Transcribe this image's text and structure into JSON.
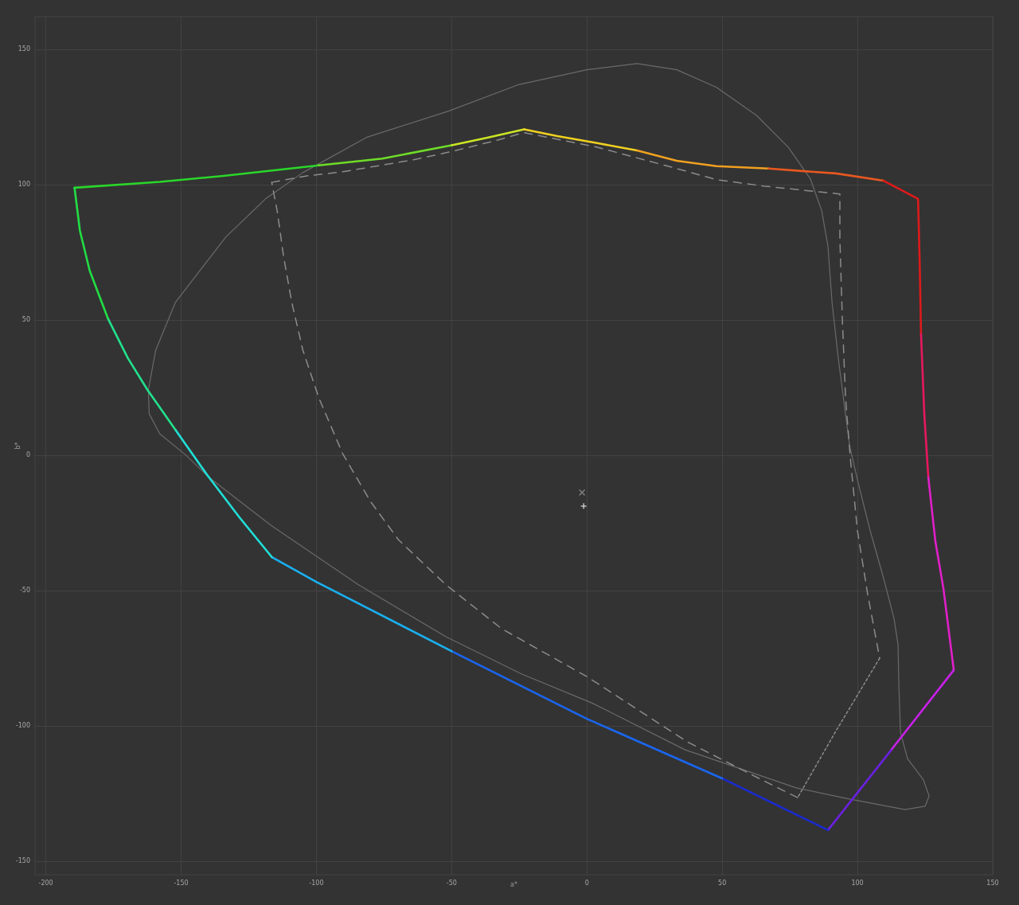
{
  "chart_data": {
    "type": "line",
    "xlabel": "a*",
    "ylabel": "b*",
    "xlim": [
      -204,
      150
    ],
    "ylim": [
      -155,
      162
    ],
    "xticks": [
      -200,
      -150,
      -100,
      -50,
      0,
      50,
      100,
      150
    ],
    "yticks": [
      -150,
      -100,
      -50,
      0,
      50,
      100,
      150
    ],
    "grid": true,
    "series": [
      {
        "color": "#6a6a6a",
        "x": [
          -162.1,
          -159.4,
          -152.1,
          -133.5,
          -118.8,
          -105,
          -81.5,
          -51.2,
          -25.6,
          0,
          18.5,
          33.2,
          47.9,
          62.6,
          74.4,
          82.6,
          86.8,
          89.1,
          90.6,
          92.9,
          97.1,
          100,
          104.7,
          109.7,
          113.5,
          115,
          115.3,
          115.9,
          118.5,
          124.4,
          126.5,
          125,
          117.6,
          95.9,
          77.4,
          36.2,
          2,
          -24,
          -52.1,
          -84.4,
          -116.8,
          -139.7,
          -148.2,
          -157.9,
          -161.8,
          -162.1,
          -159.4
        ],
        "values": [
          24.1,
          38.8,
          56.5,
          80.6,
          94.7,
          104.4,
          117.4,
          127.1,
          136.8,
          142.4,
          144.7,
          142.4,
          135.9,
          125.6,
          113.8,
          102.1,
          90.3,
          77.1,
          56.5,
          35.9,
          3.5,
          -9.1,
          -27.9,
          -45.6,
          -60.3,
          -70,
          -84.7,
          -102.4,
          -112.1,
          -120,
          -125.9,
          -129.7,
          -130.9,
          -126.8,
          -122.9,
          -108.8,
          -91.6,
          -80.9,
          -67.1,
          -47.9,
          -25.9,
          -8.2,
          0,
          7.9,
          15.3,
          24.1,
          38.8
        ]
      },
      {
        "color": "#8c8c8c",
        "line_style": "dashed",
        "x": [
          -116.5,
          -103.5,
          -90.3,
          -63.8,
          -49.1,
          -33.5,
          -23.3,
          3.8,
          33.2,
          47.9,
          65.6,
          93.5,
          93.5,
          94.4,
          95.6,
          97.4,
          100,
          103.8,
          108.2
        ],
        "values": [
          100.8,
          103.2,
          104.7,
          109.2,
          112.4,
          116.3,
          119.2,
          113.8,
          105.9,
          101.8,
          99.4,
          96.5,
          80,
          50.6,
          21.2,
          -1.5,
          -27.9,
          -51.5,
          -75
        ]
      },
      {
        "color": "#8c8c8c",
        "line_style": "dotted",
        "x": [
          108.2,
          92.1,
          77.9
        ],
        "values": [
          -75,
          -101.8,
          -126.5
        ]
      },
      {
        "color": "#8c8c8c",
        "line_style": "dashed",
        "x": [
          77.9,
          61.8,
          37.1,
          0,
          -31.5,
          -52.1,
          -69.7,
          -80,
          -90.3,
          -99.1,
          -105,
          -109.1,
          -112.1,
          -114.4,
          -116.5
        ],
        "values": [
          -126.5,
          -118.5,
          -105.9,
          -81.8,
          -64.1,
          -47.9,
          -31.2,
          -17.1,
          0.6,
          21.2,
          38.8,
          56.5,
          73.2,
          89.7,
          100.8
        ]
      },
      {
        "color": "#2ad62a",
        "x": [
          -189.4,
          -157.9,
          -134.4,
          -99.1
        ],
        "values": [
          98.8,
          101.0,
          103.2,
          107.1
        ]
      },
      {
        "color": "#6edc28",
        "x": [
          -99.1,
          -75.6,
          -50.0
        ],
        "values": [
          107.1,
          109.6,
          114.5
        ]
      },
      {
        "color": "#cce424",
        "x": [
          -50.0,
          -36.5,
          -23.2
        ],
        "values": [
          114.5,
          117.4,
          120.4
        ]
      },
      {
        "color": "#f0d020",
        "x": [
          -23.2,
          -10.9,
          3.8,
          18.5
        ],
        "values": [
          120.4,
          117.9,
          115.3,
          112.6
        ]
      },
      {
        "color": "#f0a020",
        "x": [
          18.5,
          33.2,
          47.9,
          67.1
        ],
        "values": [
          112.6,
          108.8,
          106.8,
          105.9
        ]
      },
      {
        "color": "#e85820",
        "x": [
          67.1,
          92.1,
          109.7
        ],
        "values": [
          105.9,
          104.1,
          101.4
        ]
      },
      {
        "color": "#dd1a1a",
        "x": [
          109.7,
          122.4,
          123.0,
          123.5
        ],
        "values": [
          101.4,
          94.7,
          71.2,
          44.7
        ]
      },
      {
        "color": "#e81860",
        "x": [
          123.5,
          124.7,
          126.2
        ],
        "values": [
          44.7,
          15.3,
          -8.2
        ]
      },
      {
        "color": "#e020c8",
        "x": [
          126.2,
          128.8,
          131.8,
          135.6
        ],
        "values": [
          -8.2,
          -31.8,
          -49.4,
          -79.4
        ]
      },
      {
        "color": "#c820e8",
        "x": [
          135.6,
          112.4
        ],
        "values": [
          -79.4,
          -109.0
        ]
      },
      {
        "color": "#6a20e0",
        "x": [
          112.4,
          89.1
        ],
        "values": [
          -109.0,
          -138.5
        ]
      },
      {
        "color": "#1a2ad0",
        "x": [
          89.1,
          50
        ],
        "values": [
          -138.5,
          -119.4
        ]
      },
      {
        "color": "#1a66ee",
        "x": [
          50,
          0,
          -50
        ],
        "values": [
          -119.4,
          -97.4,
          -72.4
        ]
      },
      {
        "color": "#1ab0f0",
        "x": [
          -50,
          -100,
          -116.5
        ],
        "values": [
          -72.4,
          -46.8,
          -37.6
        ]
      },
      {
        "color": "#20e0d8",
        "x": [
          -116.5,
          -128.5,
          -140.3,
          -152.1
        ],
        "values": [
          -37.6,
          -22.9,
          -7.4,
          9.4
        ]
      },
      {
        "color": "#22e08c",
        "x": [
          -152.1,
          -162.4,
          -169.7,
          -177.1
        ],
        "values": [
          9.4,
          24.1,
          35.9,
          50.6
        ]
      },
      {
        "color": "#22dd44",
        "x": [
          -177.1,
          -183.8,
          -187.4,
          -189.4
        ],
        "values": [
          50.6,
          68.2,
          82.9,
          98.8
        ]
      },
      {
        "type": "scatter",
        "marker": "x",
        "color": "#9a9a9a",
        "x": [
          -1.8
        ],
        "values": [
          -13.8
        ]
      },
      {
        "type": "scatter",
        "marker": "cross",
        "color": "#ffffff",
        "x": [
          -1.2
        ],
        "values": [
          -18.8
        ]
      }
    ]
  }
}
